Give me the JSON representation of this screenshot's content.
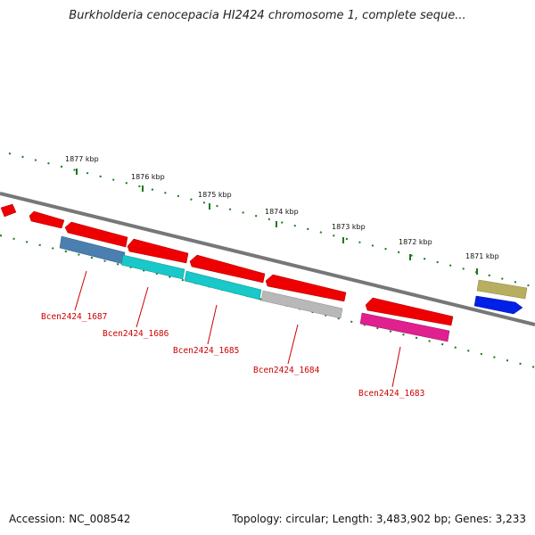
{
  "title": "Burkholderia cenocepacia HI2424 chromosome 1, complete seque...",
  "footer": {
    "accession": "Accession: NC_008542",
    "topology": "Topology: circular; Length: 3,483,902 bp; Genes: 3,233"
  },
  "ruler_ticks": [
    "1877 kbp",
    "1876 kbp",
    "1875 kbp",
    "1874 kbp",
    "1873 kbp",
    "1872 kbp",
    "1871 kbp"
  ],
  "gene_labels": [
    "Bcen2424_1687",
    "Bcen2424_1686",
    "Bcen2424_1685",
    "Bcen2424_1684",
    "Bcen2424_1683"
  ],
  "colors": {
    "forward_gene": "#ee0000",
    "rna_gene": "#4a7fb0",
    "cyan_gene": "#19c8c8",
    "gray_gene": "#b8b8b8",
    "magenta_gene": "#e0208f",
    "olive_gene": "#b8ae60",
    "blue_gene": "#0020e8",
    "ruler": "#1a7a1a",
    "backbone": "#777777",
    "label": "#cc0000"
  }
}
